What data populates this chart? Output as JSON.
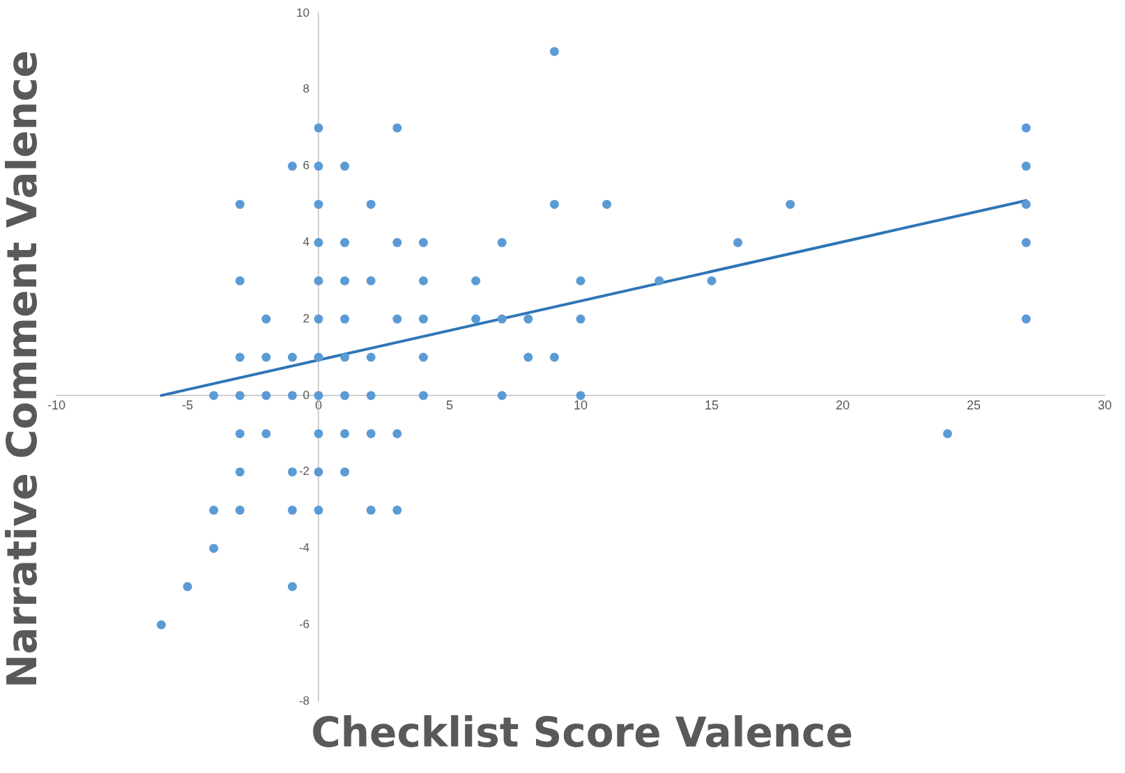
{
  "chart_data": {
    "type": "scatter",
    "xlabel": "Checklist Score Valence",
    "ylabel": "Narrative Comment Valence",
    "xlim": [
      -10,
      30
    ],
    "xticks": [
      -10,
      -5,
      0,
      5,
      10,
      15,
      20,
      25,
      30
    ],
    "ylim": [
      -8,
      10
    ],
    "yticks": [
      -8,
      -6,
      -4,
      -2,
      0,
      2,
      4,
      6,
      8,
      10
    ],
    "marker": "circle",
    "series": [
      {
        "type": "scatter",
        "color": "#5b9bd5",
        "x": [
          9,
          0,
          3,
          27,
          -1,
          0,
          1,
          27,
          -3,
          0,
          2,
          9,
          11,
          18,
          27,
          0,
          1,
          3,
          4,
          7,
          16,
          27,
          -3,
          0,
          1,
          2,
          4,
          6,
          10,
          13,
          15,
          -2,
          0,
          1,
          3,
          4,
          6,
          7,
          8,
          10,
          27,
          -3,
          -2,
          -1,
          0,
          1,
          2,
          4,
          8,
          9,
          -4,
          -3,
          -2,
          -1,
          0,
          1,
          2,
          4,
          7,
          10,
          -3,
          -2,
          0,
          1,
          2,
          3,
          24,
          -3,
          -1,
          0,
          1,
          -4,
          -3,
          -1,
          0,
          2,
          3,
          -4,
          -5,
          -1,
          -6
        ],
        "values": [
          9,
          7,
          7,
          7,
          6,
          6,
          6,
          6,
          5,
          5,
          5,
          5,
          5,
          5,
          5,
          4,
          4,
          4,
          4,
          4,
          4,
          4,
          3,
          3,
          3,
          3,
          3,
          3,
          3,
          3,
          3,
          2,
          2,
          2,
          2,
          2,
          2,
          2,
          2,
          2,
          2,
          1,
          1,
          1,
          1,
          1,
          1,
          1,
          1,
          1,
          0,
          0,
          0,
          0,
          0,
          0,
          0,
          0,
          0,
          0,
          -1,
          -1,
          -1,
          -1,
          -1,
          -1,
          -1,
          -2,
          -2,
          -2,
          -2,
          -3,
          -3,
          -3,
          -3,
          -3,
          -3,
          -4,
          -5,
          -5,
          -6
        ]
      },
      {
        "type": "line",
        "color": "#2e75b6",
        "x": [
          -6,
          27
        ],
        "values": [
          0,
          5.1
        ],
        "marker": "none"
      }
    ]
  }
}
